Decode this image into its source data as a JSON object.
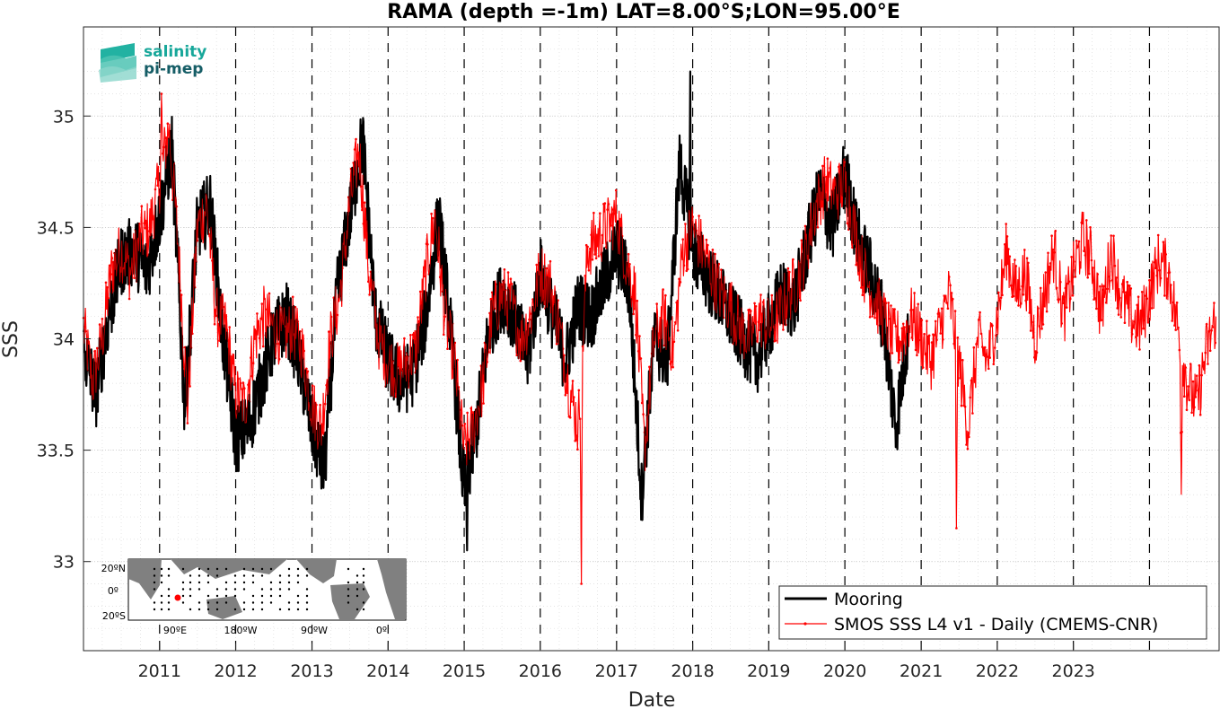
{
  "chart_data": {
    "type": "line",
    "title": "RAMA (depth =-1m) LAT=8.00°S;LON=95.00°E",
    "xlabel": "Date",
    "ylabel": "SSS",
    "xlim": [
      "2010-01-01",
      "2024-11-30"
    ],
    "ylim": [
      32.6,
      35.4
    ],
    "x_ticks": [
      "2011",
      "2012",
      "2013",
      "2014",
      "2015",
      "2016",
      "2017",
      "2018",
      "2019",
      "2020",
      "2021",
      "2022",
      "2023"
    ],
    "y_ticks": [
      "33",
      "33.5",
      "34",
      "34.5",
      "35"
    ],
    "grid": "dotted",
    "year_divider_lines": "dashed",
    "legend_position": "bottom-right",
    "series": [
      {
        "name": "Mooring",
        "color": "#000000",
        "points": [
          [
            "2010-01-01",
            33.95
          ],
          [
            "2010-03-01",
            33.75
          ],
          [
            "2010-05-01",
            34.1
          ],
          [
            "2010-07-01",
            34.35
          ],
          [
            "2010-09-01",
            34.4
          ],
          [
            "2010-11-01",
            34.3
          ],
          [
            "2011-01-01",
            34.55
          ],
          [
            "2011-03-01",
            34.85
          ],
          [
            "2011-05-01",
            33.7
          ],
          [
            "2011-07-01",
            34.5
          ],
          [
            "2011-09-01",
            34.6
          ],
          [
            "2011-11-01",
            34.0
          ],
          [
            "2012-01-01",
            33.55
          ],
          [
            "2012-03-01",
            33.6
          ],
          [
            "2012-05-01",
            33.8
          ],
          [
            "2012-07-01",
            34.0
          ],
          [
            "2012-09-01",
            34.1
          ],
          [
            "2012-11-01",
            33.9
          ],
          [
            "2013-01-01",
            33.6
          ],
          [
            "2013-03-01",
            33.4
          ],
          [
            "2013-05-01",
            34.2
          ],
          [
            "2013-07-01",
            34.55
          ],
          [
            "2013-09-01",
            34.9
          ],
          [
            "2013-11-01",
            34.1
          ],
          [
            "2014-01-01",
            33.9
          ],
          [
            "2014-03-01",
            33.8
          ],
          [
            "2014-05-01",
            33.85
          ],
          [
            "2014-07-01",
            34.1
          ],
          [
            "2014-09-01",
            34.55
          ],
          [
            "2014-11-01",
            34.0
          ],
          [
            "2015-01-01",
            33.3
          ],
          [
            "2015-03-01",
            33.6
          ],
          [
            "2015-05-01",
            34.05
          ],
          [
            "2015-07-01",
            34.2
          ],
          [
            "2015-09-01",
            34.1
          ],
          [
            "2015-11-01",
            33.9
          ],
          [
            "2016-01-01",
            34.3
          ],
          [
            "2016-03-01",
            34.1
          ],
          [
            "2016-05-01",
            33.9
          ],
          [
            "2016-07-01",
            34.15
          ],
          [
            "2016-09-01",
            34.1
          ],
          [
            "2016-11-01",
            34.25
          ],
          [
            "2017-01-01",
            34.4
          ],
          [
            "2017-03-01",
            34.25
          ],
          [
            "2017-05-01",
            33.3
          ],
          [
            "2017-07-01",
            34.0
          ],
          [
            "2017-09-01",
            33.9
          ],
          [
            "2017-11-01",
            34.8
          ],
          [
            "2018-01-01",
            34.4
          ],
          [
            "2018-03-01",
            34.3
          ],
          [
            "2018-05-01",
            34.2
          ],
          [
            "2018-07-01",
            34.1
          ],
          [
            "2018-09-01",
            34.0
          ],
          [
            "2018-11-01",
            33.9
          ],
          [
            "2019-01-01",
            34.05
          ],
          [
            "2019-03-01",
            34.2
          ],
          [
            "2019-05-01",
            34.15
          ],
          [
            "2019-07-01",
            34.4
          ],
          [
            "2019-09-01",
            34.65
          ],
          [
            "2019-11-01",
            34.5
          ],
          [
            "2020-01-01",
            34.75
          ],
          [
            "2020-03-01",
            34.45
          ],
          [
            "2020-05-01",
            34.3
          ],
          [
            "2020-07-01",
            34.1
          ],
          [
            "2020-09-01",
            33.6
          ],
          [
            "2020-11-01",
            34.05
          ]
        ]
      },
      {
        "name": "SMOS SSS L4 v1 - Daily (CMEMS-CNR)",
        "color": "#ff0000",
        "points": [
          [
            "2010-01-01",
            34.05
          ],
          [
            "2010-02-15",
            33.8
          ],
          [
            "2010-04-01",
            34.0
          ],
          [
            "2010-05-15",
            34.3
          ],
          [
            "2010-07-01",
            34.4
          ],
          [
            "2010-08-15",
            34.3
          ],
          [
            "2010-10-01",
            34.45
          ],
          [
            "2010-11-15",
            34.5
          ],
          [
            "2011-01-01",
            34.7
          ],
          [
            "2011-02-15",
            34.95
          ],
          [
            "2011-04-01",
            34.4
          ],
          [
            "2011-05-15",
            33.7
          ],
          [
            "2011-07-01",
            34.5
          ],
          [
            "2011-08-15",
            34.6
          ],
          [
            "2011-10-01",
            34.1
          ],
          [
            "2011-11-15",
            34.05
          ],
          [
            "2012-01-01",
            33.75
          ],
          [
            "2012-02-15",
            33.7
          ],
          [
            "2012-04-01",
            34.0
          ],
          [
            "2012-05-15",
            34.1
          ],
          [
            "2012-07-01",
            34.05
          ],
          [
            "2012-08-15",
            34.0
          ],
          [
            "2012-10-01",
            34.05
          ],
          [
            "2012-11-15",
            33.95
          ],
          [
            "2013-01-01",
            33.7
          ],
          [
            "2013-02-15",
            33.6
          ],
          [
            "2013-04-01",
            34.0
          ],
          [
            "2013-05-15",
            34.2
          ],
          [
            "2013-07-01",
            34.6
          ],
          [
            "2013-08-15",
            34.85
          ],
          [
            "2013-10-01",
            34.3
          ],
          [
            "2013-11-15",
            34.0
          ],
          [
            "2014-01-01",
            33.9
          ],
          [
            "2014-02-15",
            33.85
          ],
          [
            "2014-04-01",
            33.9
          ],
          [
            "2014-05-15",
            33.95
          ],
          [
            "2014-07-01",
            34.3
          ],
          [
            "2014-08-15",
            34.55
          ],
          [
            "2014-10-01",
            34.1
          ],
          [
            "2014-11-15",
            33.9
          ],
          [
            "2015-01-01",
            33.5
          ],
          [
            "2015-02-15",
            33.6
          ],
          [
            "2015-04-01",
            33.8
          ],
          [
            "2015-05-15",
            34.1
          ],
          [
            "2015-07-01",
            34.2
          ],
          [
            "2015-08-15",
            34.15
          ],
          [
            "2015-10-01",
            34.0
          ],
          [
            "2015-11-15",
            34.1
          ],
          [
            "2016-01-01",
            34.3
          ],
          [
            "2016-02-15",
            34.25
          ],
          [
            "2016-04-01",
            34.05
          ],
          [
            "2016-05-15",
            33.8
          ],
          [
            "2016-07-01",
            33.6
          ],
          [
            "2016-08-15",
            34.4
          ],
          [
            "2016-10-01",
            34.45
          ],
          [
            "2016-11-15",
            34.5
          ],
          [
            "2017-01-01",
            34.55
          ],
          [
            "2017-02-15",
            34.35
          ],
          [
            "2017-04-01",
            34.2
          ],
          [
            "2017-05-15",
            33.5
          ],
          [
            "2017-07-01",
            34.0
          ],
          [
            "2017-08-15",
            34.1
          ],
          [
            "2017-10-01",
            33.95
          ],
          [
            "2017-11-15",
            34.4
          ],
          [
            "2018-01-01",
            34.5
          ],
          [
            "2018-02-15",
            34.4
          ],
          [
            "2018-04-01",
            34.3
          ],
          [
            "2018-05-15",
            34.2
          ],
          [
            "2018-07-01",
            34.15
          ],
          [
            "2018-08-15",
            34.05
          ],
          [
            "2018-10-01",
            34.0
          ],
          [
            "2018-11-15",
            34.1
          ],
          [
            "2019-01-01",
            34.05
          ],
          [
            "2019-02-15",
            34.1
          ],
          [
            "2019-04-01",
            34.2
          ],
          [
            "2019-05-15",
            34.25
          ],
          [
            "2019-07-01",
            34.4
          ],
          [
            "2019-08-15",
            34.6
          ],
          [
            "2019-10-01",
            34.7
          ],
          [
            "2019-11-15",
            34.65
          ],
          [
            "2020-01-01",
            34.7
          ],
          [
            "2020-02-15",
            34.5
          ],
          [
            "2020-04-01",
            34.3
          ],
          [
            "2020-05-15",
            34.2
          ],
          [
            "2020-07-01",
            34.1
          ],
          [
            "2020-08-15",
            34.0
          ],
          [
            "2020-10-01",
            34.0
          ],
          [
            "2020-11-15",
            34.1
          ],
          [
            "2021-01-01",
            34.0
          ],
          [
            "2021-02-15",
            33.9
          ],
          [
            "2021-04-01",
            34.05
          ],
          [
            "2021-05-15",
            34.2
          ],
          [
            "2021-07-01",
            33.9
          ],
          [
            "2021-08-15",
            33.6
          ],
          [
            "2021-10-01",
            34.0
          ],
          [
            "2021-11-15",
            33.9
          ],
          [
            "2022-01-01",
            34.1
          ],
          [
            "2022-02-15",
            34.4
          ],
          [
            "2022-04-01",
            34.2
          ],
          [
            "2022-05-15",
            34.3
          ],
          [
            "2022-07-01",
            34.0
          ],
          [
            "2022-08-15",
            34.2
          ],
          [
            "2022-10-01",
            34.4
          ],
          [
            "2022-11-15",
            34.1
          ],
          [
            "2023-01-01",
            34.3
          ],
          [
            "2023-02-15",
            34.45
          ],
          [
            "2023-04-01",
            34.35
          ],
          [
            "2023-05-15",
            34.1
          ],
          [
            "2023-07-01",
            34.4
          ],
          [
            "2023-08-15",
            34.2
          ],
          [
            "2023-10-01",
            34.1
          ],
          [
            "2023-11-15",
            34.05
          ],
          [
            "2024-01-01",
            34.2
          ],
          [
            "2024-02-15",
            34.35
          ],
          [
            "2024-04-01",
            34.3
          ],
          [
            "2024-05-15",
            34.05
          ],
          [
            "2024-07-01",
            33.8
          ],
          [
            "2024-08-15",
            33.7
          ],
          [
            "2024-10-01",
            33.95
          ],
          [
            "2024-11-15",
            34.1
          ]
        ]
      }
    ],
    "extrema": [
      {
        "date": "2015-01-15",
        "value": 33.05,
        "series": "Mooring"
      },
      {
        "date": "2016-07-15",
        "value": 32.9,
        "series": "SMOS SSS L4 v1 - Daily (CMEMS-CNR)"
      },
      {
        "date": "2017-12-20",
        "value": 35.2,
        "series": "Mooring"
      },
      {
        "date": "2011-01-10",
        "value": 35.1,
        "series": "SMOS SSS L4 v1 - Daily (CMEMS-CNR)"
      },
      {
        "date": "2021-06-20",
        "value": 33.15,
        "series": "SMOS SSS L4 v1 - Daily (CMEMS-CNR)"
      },
      {
        "date": "2024-06-01",
        "value": 33.3,
        "series": "SMOS SSS L4 v1 - Daily (CMEMS-CNR)"
      }
    ]
  },
  "logo": {
    "line1": "salinity",
    "line2": "pi-mep"
  },
  "inset_map": {
    "y_labels": [
      "20ºN",
      "0º",
      "20ºS"
    ],
    "x_labels": [
      "90ºE",
      "180ºW",
      "90ºW",
      "0º"
    ],
    "land_color": "#808080",
    "marker_color": "#ff0000"
  },
  "colors": {
    "mooring": "#000000",
    "smos": "#ff0000",
    "axis": "#262626"
  }
}
